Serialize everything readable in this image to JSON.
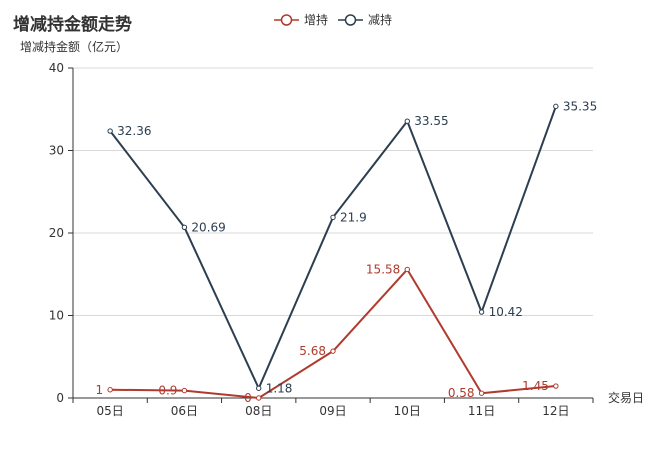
{
  "chart_data": {
    "type": "line",
    "title": "增减持金额走势",
    "ylabel": "增减持金额（亿元）",
    "xlabel": "交易日",
    "categories": [
      "05日",
      "06日",
      "08日",
      "09日",
      "10日",
      "11日",
      "12日"
    ],
    "ylim": [
      0,
      40
    ],
    "yticks": [
      0,
      10,
      20,
      30,
      40
    ],
    "grid": true,
    "legend_position": "top-center",
    "series": [
      {
        "name": "增持",
        "color": "#b03a2e",
        "values": [
          1,
          0.9,
          0,
          5.68,
          15.58,
          0.58,
          1.45
        ],
        "labels": [
          "1",
          "0.9",
          "0",
          "5.68",
          "15.58",
          "0.58",
          "1.45"
        ],
        "label_side": "left"
      },
      {
        "name": "减持",
        "color": "#2c3e50",
        "values": [
          32.36,
          20.69,
          1.18,
          21.9,
          33.55,
          10.42,
          35.35
        ],
        "labels": [
          "32.36",
          "20.69",
          "1.18",
          "21.9",
          "33.55",
          "10.42",
          "35.35"
        ],
        "label_side": "right"
      }
    ]
  }
}
